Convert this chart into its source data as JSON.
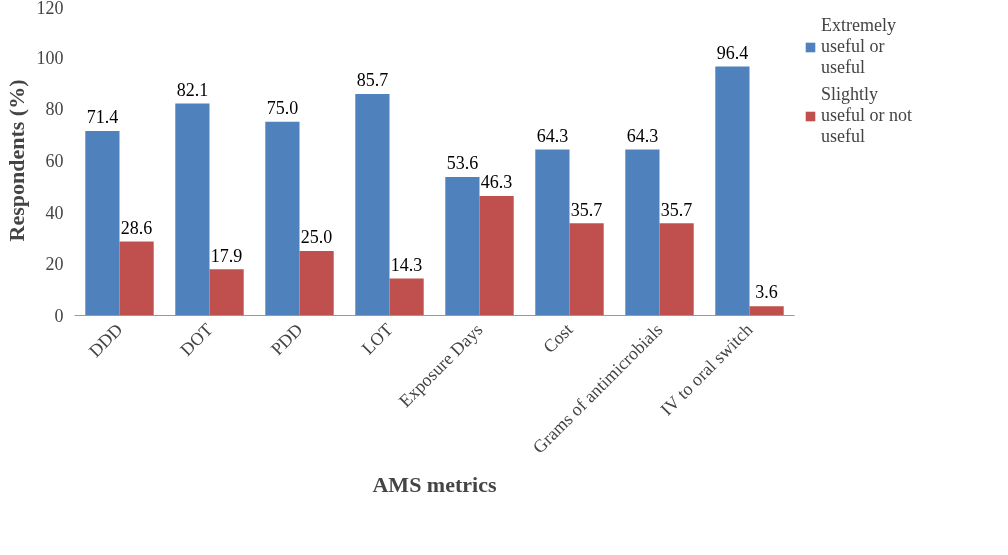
{
  "chart_data": {
    "type": "bar",
    "xlabel": "AMS metrics",
    "ylabel": "Respondents (%)",
    "categories": [
      "DDD",
      "DOT",
      "PDD",
      "LOT",
      "Exposure Days",
      "Cost",
      "Grams of antimicrobials",
      "IV to oral switch"
    ],
    "series": [
      {
        "name": "Extremely useful or useful",
        "color": "#4f81bd",
        "values": [
          71.4,
          82.1,
          75.0,
          85.7,
          53.6,
          64.3,
          64.3,
          96.4
        ],
        "value_labels": [
          "71.4",
          "82.1",
          "75.0",
          "85.7",
          "53.6",
          "64.3",
          "64.3",
          "96.4"
        ]
      },
      {
        "name": "Slightly useful or not useful",
        "color": "#c0504d",
        "values": [
          28.6,
          17.9,
          25.0,
          14.3,
          46.3,
          35.7,
          35.7,
          3.6
        ],
        "value_labels": [
          "28.6",
          "17.9",
          "25.0",
          "14.3",
          "46.3",
          "35.7",
          "35.7",
          "3.6"
        ]
      }
    ],
    "ylim": [
      0,
      120
    ],
    "yticks": [
      0,
      20,
      40,
      60,
      80,
      100,
      120
    ],
    "grid": false,
    "legend": "top right"
  }
}
